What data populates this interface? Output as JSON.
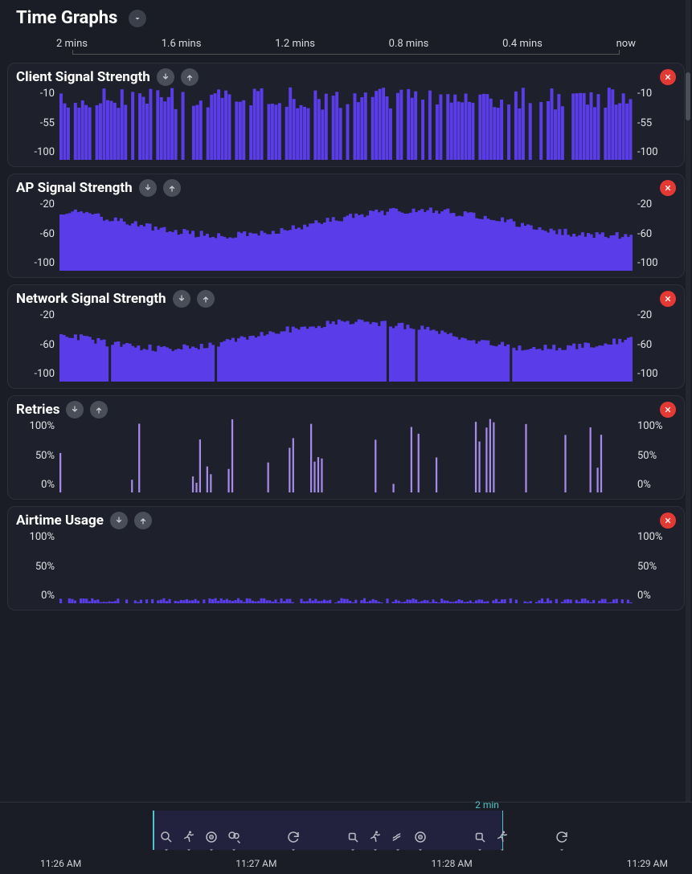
{
  "header": {
    "title": "Time Graphs"
  },
  "ruler": {
    "labels": [
      "2 mins",
      "1.6 mins",
      "1.2 mins",
      "0.8 mins",
      "0.4 mins",
      "now"
    ]
  },
  "chart_style": {
    "bar_color": "#5a3ce8",
    "bar_color_light": "#a68ae8",
    "panel_bg": "#1e212b",
    "panel_border": "#2d3039",
    "axis_text": "#e0e2e6",
    "close_bg": "#e53935",
    "icon_bg": "#4a4e58"
  },
  "panels": [
    {
      "id": "client-signal",
      "title": "Client Signal Strength",
      "type": "bar",
      "yticks": [
        "-10",
        "-55",
        "-100"
      ],
      "ylim": [
        -100,
        -10
      ],
      "color": "#5a3ce8",
      "bars": 160,
      "seed": 1,
      "shape": "spiky",
      "base_min": 0.68,
      "base_max": 0.98,
      "gap_prob": 0.22
    },
    {
      "id": "ap-signal",
      "title": "AP Signal Strength",
      "type": "area",
      "yticks": [
        "-20",
        "-60",
        "-100"
      ],
      "ylim": [
        -100,
        -20
      ],
      "color": "#5a3ce8",
      "bars": 200,
      "seed": 2,
      "shape": "wave",
      "base_min": 0.48,
      "base_max": 0.82,
      "gap_prob": 0.0
    },
    {
      "id": "network-signal",
      "title": "Network Signal Strength",
      "type": "area",
      "yticks": [
        "-20",
        "-60",
        "-100"
      ],
      "ylim": [
        -100,
        -20
      ],
      "color": "#5a3ce8",
      "bars": 200,
      "seed": 3,
      "shape": "wave",
      "base_min": 0.45,
      "base_max": 0.8,
      "gap_prob": 0.02
    },
    {
      "id": "retries",
      "title": "Retries",
      "type": "bar",
      "yticks": [
        "100%",
        "50%",
        "0%"
      ],
      "ylim": [
        0,
        100
      ],
      "color": "#a68ae8",
      "bars": 160,
      "seed": 4,
      "shape": "sparse",
      "base_min": 0.1,
      "base_max": 1.0,
      "gap_prob": 0.8,
      "thin": true
    },
    {
      "id": "airtime",
      "title": "Airtime Usage",
      "type": "bar",
      "yticks": [
        "100%",
        "50%",
        "0%"
      ],
      "ylim": [
        0,
        100
      ],
      "color": "#5a3ce8",
      "bars": 200,
      "seed": 5,
      "shape": "low",
      "base_min": 0.01,
      "base_max": 0.07,
      "gap_prob": 0.15
    }
  ],
  "footer": {
    "times": [
      "11:26 AM",
      "11:27 AM",
      "11:28 AM",
      "11:29 AM"
    ],
    "range_label": "2 min",
    "range_start_frac": 0.0,
    "range_end_frac": 0.68,
    "icons": [
      [
        "search-globe-icon",
        "runner-icon",
        "target-icon",
        "search-group-icon"
      ],
      [
        "refresh-icon"
      ],
      [
        "search-cpu-icon",
        "runner-icon",
        "smoke-icon",
        "target-icon"
      ],
      [
        "search-cpu-icon",
        "runner-icon"
      ],
      [
        "refresh-icon"
      ]
    ]
  },
  "scrollbar": {
    "thumb_top": 90,
    "thumb_height": 60
  }
}
